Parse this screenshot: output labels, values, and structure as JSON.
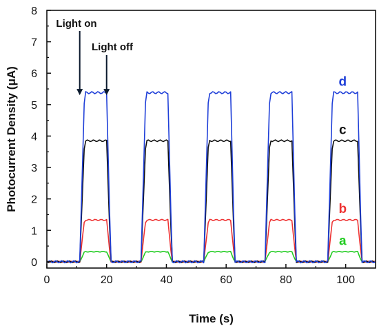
{
  "chart_data": {
    "type": "line",
    "xlabel": "Time (s)",
    "ylabel": "Photocurrent Density (μA)",
    "xlim": [
      0,
      110
    ],
    "ylim": [
      -0.2,
      8
    ],
    "xticks": [
      0,
      20,
      40,
      60,
      80,
      100
    ],
    "yticks": [
      0,
      1,
      2,
      3,
      4,
      5,
      6,
      7,
      8
    ],
    "grid": false,
    "annotations": [
      {
        "text": "Light on",
        "x": 11,
        "y": 5.3
      },
      {
        "text": "Light off",
        "x": 20,
        "y": 5.3
      }
    ],
    "on_intervals": [
      [
        11,
        20
      ],
      [
        31.5,
        40.5
      ],
      [
        52.5,
        61.5
      ],
      [
        73,
        82
      ],
      [
        94,
        104
      ]
    ],
    "series": [
      {
        "name": "a",
        "color": "#22cc22",
        "plateau": 0.32,
        "baseline": 0.0
      },
      {
        "name": "b",
        "color": "#ee3333",
        "plateau": 1.33,
        "baseline": 0.0
      },
      {
        "name": "c",
        "color": "#111111",
        "plateau": 3.85,
        "baseline": 0.0
      },
      {
        "name": "d",
        "color": "#1f3fd8",
        "plateau": 5.38,
        "baseline": 0.0
      }
    ]
  }
}
